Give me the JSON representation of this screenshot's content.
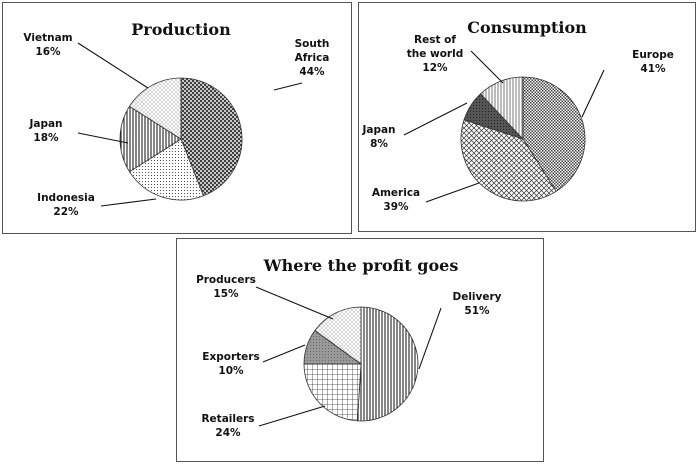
{
  "chart_data": [
    {
      "type": "pie",
      "title": "Production",
      "slices": [
        {
          "label": [
            "South",
            "Africa"
          ],
          "value": 44,
          "pct": "44%",
          "pattern": "pat-diag-cross-dense"
        },
        {
          "label": [
            "Indonesia"
          ],
          "value": 22,
          "pct": "22%",
          "pattern": "pat-dots-fine"
        },
        {
          "label": [
            "Japan"
          ],
          "value": 18,
          "pct": "18%",
          "pattern": "pat-vert-lines"
        },
        {
          "label": [
            "Vietnam"
          ],
          "value": 16,
          "pct": "16%",
          "pattern": "pat-light-dots"
        }
      ]
    },
    {
      "type": "pie",
      "title": "Consumption",
      "slices": [
        {
          "label": [
            "Europe"
          ],
          "value": 41,
          "pct": "41%",
          "pattern": "pat-small-checks"
        },
        {
          "label": [
            "America"
          ],
          "value": 39,
          "pct": "39%",
          "pattern": "pat-diag-cross"
        },
        {
          "label": [
            "Japan"
          ],
          "value": 8,
          "pct": "8%",
          "pattern": "pat-dark-grid"
        },
        {
          "label": [
            "Rest of",
            "the world"
          ],
          "value": 12,
          "pct": "12%",
          "pattern": "pat-vert-lines-light"
        }
      ]
    },
    {
      "type": "pie",
      "title": "Where the profit goes",
      "slices": [
        {
          "label": [
            "Delivery"
          ],
          "value": 51,
          "pct": "51%",
          "pattern": "pat-vert-lines"
        },
        {
          "label": [
            "Retailers"
          ],
          "value": 24,
          "pct": "24%",
          "pattern": "pat-square-grid"
        },
        {
          "label": [
            "Exporters"
          ],
          "value": 10,
          "pct": "10%",
          "pattern": "pat-gray-texture"
        },
        {
          "label": [
            "Producers"
          ],
          "value": 15,
          "pct": "15%",
          "pattern": "pat-light-dots"
        }
      ]
    }
  ]
}
